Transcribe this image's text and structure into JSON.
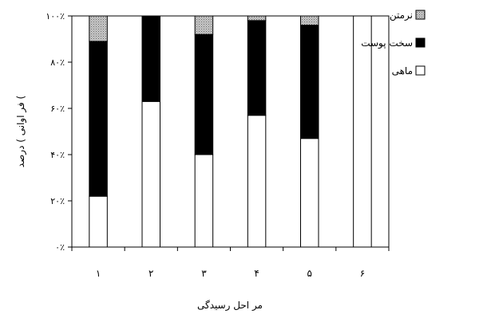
{
  "chart_data": {
    "type": "bar",
    "stacked": true,
    "percent": true,
    "xlabel": "مر احل رسیدگی",
    "ylabel": "فر اوانی ) درصد (",
    "categories": [
      "۱",
      "۲",
      "۳",
      "۴",
      "۵",
      "۶"
    ],
    "yticks": [
      "۰٪",
      "۲۰٪",
      "۴۰٪",
      "۶۰٪",
      "۸۰٪",
      "۱۰۰٪"
    ],
    "ylim": [
      0,
      100
    ],
    "grid": false,
    "legend_position": "right",
    "series": [
      {
        "name": "ماهی",
        "values": [
          22,
          63,
          40,
          57,
          47,
          100
        ],
        "color": "#ffffff",
        "pattern": "none"
      },
      {
        "name": "سخت پوست",
        "values": [
          67,
          37,
          52,
          41,
          49,
          0
        ],
        "color": "#000000",
        "pattern": "none"
      },
      {
        "name": "نرمتن",
        "values": [
          11,
          0,
          8,
          2,
          4,
          0
        ],
        "color": "#bdbdbd",
        "pattern": "dots"
      }
    ]
  }
}
